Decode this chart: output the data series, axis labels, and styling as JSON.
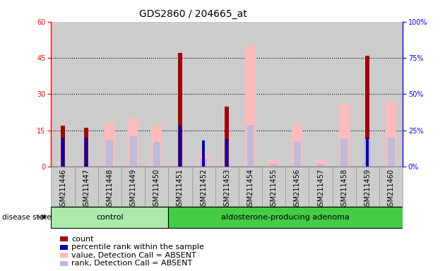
{
  "title": "GDS2860 / 204665_at",
  "samples": [
    "GSM211446",
    "GSM211447",
    "GSM211448",
    "GSM211449",
    "GSM211450",
    "GSM211451",
    "GSM211452",
    "GSM211453",
    "GSM211454",
    "GSM211455",
    "GSM211456",
    "GSM211457",
    "GSM211458",
    "GSM211459",
    "GSM211460"
  ],
  "count": [
    17,
    16,
    0,
    0,
    0,
    47,
    0,
    25,
    0,
    0,
    0,
    0,
    0,
    46,
    0
  ],
  "percentile": [
    20,
    20,
    0,
    0,
    0,
    29,
    18,
    19,
    0,
    0,
    0,
    0,
    0,
    20,
    0
  ],
  "value_absent": [
    0,
    0,
    18,
    20,
    17,
    0,
    5,
    0,
    50,
    3,
    17,
    3,
    26,
    0,
    27
  ],
  "rank_absent": [
    0,
    0,
    18,
    21,
    17,
    0,
    6,
    0,
    29,
    2,
    17,
    2,
    19,
    19,
    20
  ],
  "groups": [
    {
      "label": "control",
      "start": 0,
      "end": 4
    },
    {
      "label": "aldosterone-producing adenoma",
      "start": 5,
      "end": 14
    }
  ],
  "ylim_left": [
    0,
    60
  ],
  "ylim_right": [
    0,
    100
  ],
  "yticks_left": [
    0,
    15,
    30,
    45,
    60
  ],
  "yticks_right": [
    0,
    25,
    50,
    75,
    100
  ],
  "color_count": "#aa0000",
  "color_percentile": "#0000bb",
  "color_value_absent": "#ffbbbb",
  "color_rank_absent": "#bbbbdd",
  "bg_color": "#cccccc",
  "group_color_control": "#aaeaaa",
  "group_color_adeno": "#44cc44",
  "title_fontsize": 10,
  "tick_fontsize": 7,
  "legend_fontsize": 8
}
